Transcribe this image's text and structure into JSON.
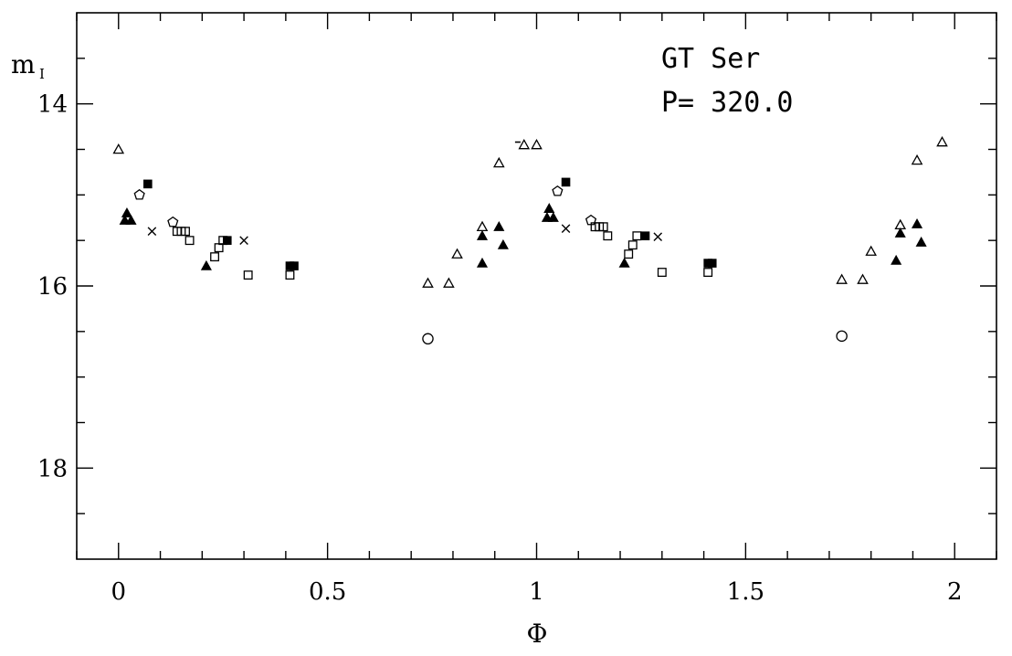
{
  "chart_data": {
    "type": "scatter",
    "xlabel": "Φ",
    "ylabel_main": "m",
    "ylabel_sub": "I",
    "xlim": [
      -0.1,
      2.1
    ],
    "ylim": [
      19.0,
      13.0
    ],
    "y_inverted": true,
    "grid": false,
    "x_major_ticks": [
      0,
      0.5,
      1,
      1.5,
      2
    ],
    "x_tick_labels": [
      "0",
      "0.5",
      "1",
      "1.5",
      "2"
    ],
    "x_minor_step": 0.1,
    "y_major_ticks": [
      14,
      16,
      18
    ],
    "y_tick_labels": [
      "14",
      "16",
      "18"
    ],
    "y_minor_step": 0.5,
    "annotations": [
      "GT Ser",
      "P=  320.0"
    ],
    "series": [
      {
        "marker": "open-triangle",
        "points": [
          [
            0.0,
            14.5
          ],
          [
            0.74,
            15.97
          ],
          [
            0.79,
            15.97
          ],
          [
            0.81,
            15.65
          ],
          [
            0.87,
            15.35
          ],
          [
            0.91,
            14.65
          ],
          [
            0.97,
            14.45
          ],
          [
            1.0,
            14.45
          ],
          [
            1.73,
            15.93
          ],
          [
            1.78,
            15.93
          ],
          [
            1.8,
            15.62
          ],
          [
            1.87,
            15.33
          ],
          [
            1.91,
            14.62
          ],
          [
            1.97,
            14.42
          ]
        ]
      },
      {
        "marker": "filled-triangle",
        "points": [
          [
            0.02,
            15.2
          ],
          [
            0.015,
            15.28
          ],
          [
            0.03,
            15.28
          ],
          [
            0.21,
            15.78
          ],
          [
            0.87,
            15.45
          ],
          [
            0.87,
            15.75
          ],
          [
            0.91,
            15.35
          ],
          [
            0.92,
            15.55
          ],
          [
            1.03,
            15.15
          ],
          [
            1.025,
            15.25
          ],
          [
            1.04,
            15.25
          ],
          [
            1.21,
            15.75
          ],
          [
            1.87,
            15.42
          ],
          [
            1.86,
            15.72
          ],
          [
            1.91,
            15.32
          ],
          [
            1.92,
            15.52
          ]
        ]
      },
      {
        "marker": "open-pentagon",
        "points": [
          [
            0.05,
            15.0
          ],
          [
            0.13,
            15.3
          ],
          [
            1.05,
            14.96
          ],
          [
            1.13,
            15.28
          ]
        ]
      },
      {
        "marker": "filled-square",
        "points": [
          [
            0.07,
            14.88
          ],
          [
            0.26,
            15.5
          ],
          [
            0.41,
            15.78
          ],
          [
            0.42,
            15.78
          ],
          [
            1.07,
            14.86
          ],
          [
            1.26,
            15.45
          ],
          [
            1.41,
            15.75
          ],
          [
            1.42,
            15.75
          ]
        ]
      },
      {
        "marker": "open-square",
        "points": [
          [
            0.14,
            15.4
          ],
          [
            0.15,
            15.4
          ],
          [
            0.16,
            15.4
          ],
          [
            0.17,
            15.5
          ],
          [
            0.23,
            15.68
          ],
          [
            0.24,
            15.58
          ],
          [
            0.25,
            15.5
          ],
          [
            0.31,
            15.88
          ],
          [
            0.41,
            15.88
          ],
          [
            1.14,
            15.35
          ],
          [
            1.15,
            15.35
          ],
          [
            1.16,
            15.35
          ],
          [
            1.17,
            15.45
          ],
          [
            1.22,
            15.65
          ],
          [
            1.23,
            15.55
          ],
          [
            1.24,
            15.45
          ],
          [
            1.3,
            15.85
          ],
          [
            1.41,
            15.85
          ]
        ]
      },
      {
        "marker": "cross",
        "points": [
          [
            0.08,
            15.4
          ],
          [
            0.3,
            15.5
          ],
          [
            1.07,
            15.37
          ],
          [
            1.29,
            15.46
          ]
        ]
      },
      {
        "marker": "open-circle",
        "points": [
          [
            0.74,
            16.58
          ],
          [
            1.73,
            16.55
          ]
        ]
      },
      {
        "marker": "dash",
        "points": [
          [
            0.955,
            14.42
          ]
        ]
      }
    ]
  }
}
